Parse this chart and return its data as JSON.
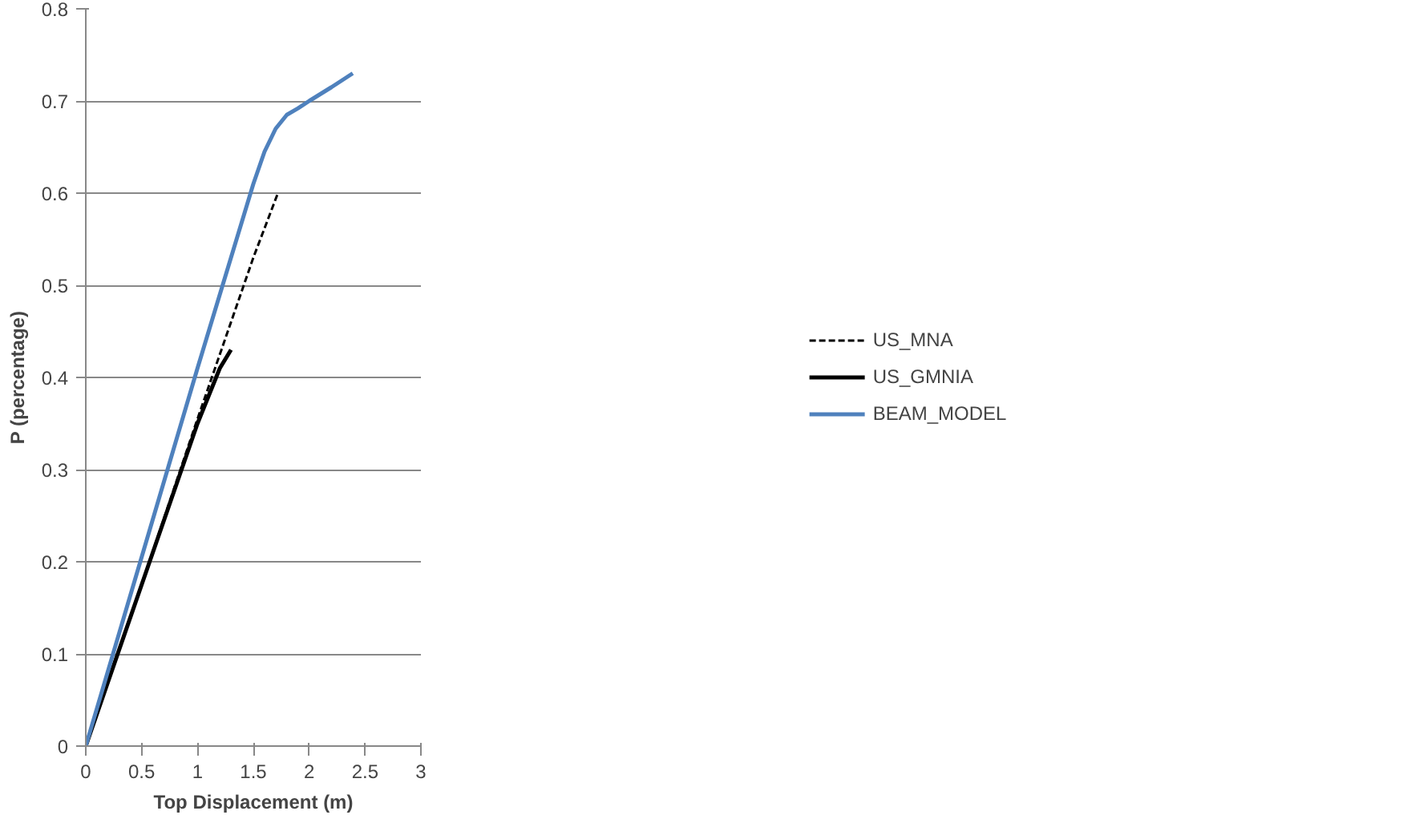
{
  "chart_data": {
    "type": "line",
    "xlabel": "Top Displacement (m)",
    "ylabel": "P (percentage)",
    "xlim": [
      0,
      3
    ],
    "ylim": [
      0,
      0.8
    ],
    "xticks": [
      0,
      0.5,
      1,
      1.5,
      2,
      2.5,
      3
    ],
    "yticks": [
      0,
      0.1,
      0.2,
      0.3,
      0.4,
      0.5,
      0.6,
      0.7,
      0.8
    ],
    "grid": "y",
    "legend": "right",
    "marker": "none",
    "series": [
      {
        "name": "US_MNA",
        "color": "#000000",
        "line_style": "dashed",
        "x": [
          0,
          0.5,
          1,
          1.5,
          1.72
        ],
        "values": [
          0,
          0.175,
          0.355,
          0.53,
          0.6
        ]
      },
      {
        "name": "US_GMNIA",
        "color": "#000000",
        "line_style": "solid",
        "x": [
          0,
          0.5,
          1,
          1.2,
          1.3
        ],
        "values": [
          0,
          0.175,
          0.35,
          0.41,
          0.43
        ]
      },
      {
        "name": "BEAM_MODEL",
        "color": "#4f81bd",
        "line_style": "solid",
        "x": [
          0,
          0.5,
          1,
          1.5,
          1.6,
          1.7,
          1.8,
          1.9,
          2,
          2.2,
          2.39
        ],
        "values": [
          0,
          0.205,
          0.41,
          0.61,
          0.645,
          0.67,
          0.685,
          0.692,
          0.7,
          0.715,
          0.73
        ]
      }
    ]
  }
}
